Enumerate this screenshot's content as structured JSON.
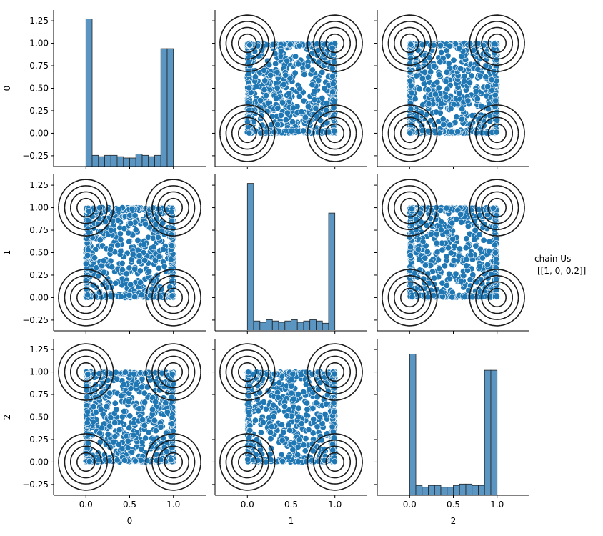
{
  "chart_data": {
    "type": "scatter",
    "kind": "pairplot",
    "variables": [
      "0",
      "1",
      "2"
    ],
    "legend": {
      "title": "chain Us",
      "entry": "[[1, 0, 0.2]]",
      "placement": "right"
    },
    "colors": {
      "points": "#1f77b4",
      "point_edge": "#ffffff",
      "contours": "#1a1a1a",
      "hist_fill": "#5b96c2",
      "hist_edge": "#222222"
    },
    "axes": {
      "xlim": [
        -0.37,
        1.37
      ],
      "ylim": [
        -0.37,
        1.37
      ],
      "xticks": [
        0.0,
        0.5,
        1.0
      ],
      "xtick_labels": [
        "0.0",
        "0.5",
        "1.0"
      ],
      "yticks": [
        -0.25,
        0.0,
        0.25,
        0.5,
        0.75,
        1.0,
        1.25
      ],
      "ytick_labels": [
        "−0.25",
        "0.00",
        "0.25",
        "0.50",
        "0.75",
        "1.00",
        "1.25"
      ]
    },
    "histograms": [
      {
        "variable": "0",
        "bin_edges": [
          0.0,
          0.0714,
          0.1429,
          0.2143,
          0.2857,
          0.3571,
          0.4286,
          0.5,
          0.5714,
          0.6429,
          0.7143,
          0.7857,
          0.8571,
          0.9286,
          1.0
        ],
        "heights_yunits": [
          1.27,
          -0.245,
          -0.26,
          -0.245,
          -0.245,
          -0.26,
          -0.275,
          -0.275,
          -0.23,
          -0.245,
          -0.26,
          -0.245,
          0.94,
          0.94
        ]
      },
      {
        "variable": "1",
        "bin_edges": [
          0.0,
          0.0714,
          0.1429,
          0.2143,
          0.2857,
          0.3571,
          0.4286,
          0.5,
          0.5714,
          0.6429,
          0.7143,
          0.7857,
          0.8571,
          0.9286,
          1.0
        ],
        "heights_yunits": [
          1.27,
          -0.26,
          -0.275,
          -0.245,
          -0.26,
          -0.275,
          -0.26,
          -0.245,
          -0.275,
          -0.26,
          -0.245,
          -0.26,
          -0.285,
          0.94
        ]
      },
      {
        "variable": "2",
        "bin_edges": [
          0.0,
          0.0714,
          0.1429,
          0.2143,
          0.2857,
          0.3571,
          0.4286,
          0.5,
          0.5714,
          0.6429,
          0.7143,
          0.7857,
          0.8571,
          0.9286,
          1.0
        ],
        "heights_yunits": [
          1.2,
          -0.26,
          -0.28,
          -0.26,
          -0.26,
          -0.28,
          -0.28,
          -0.26,
          -0.245,
          -0.245,
          -0.26,
          -0.26,
          1.02,
          1.02
        ]
      }
    ],
    "contour_centers": [
      [
        0.0,
        0.0
      ],
      [
        0.0,
        1.0
      ],
      [
        1.0,
        0.0
      ],
      [
        1.0,
        1.0
      ]
    ],
    "scatter_range": [
      0.0,
      1.0
    ],
    "points_per_panel": 900
  }
}
